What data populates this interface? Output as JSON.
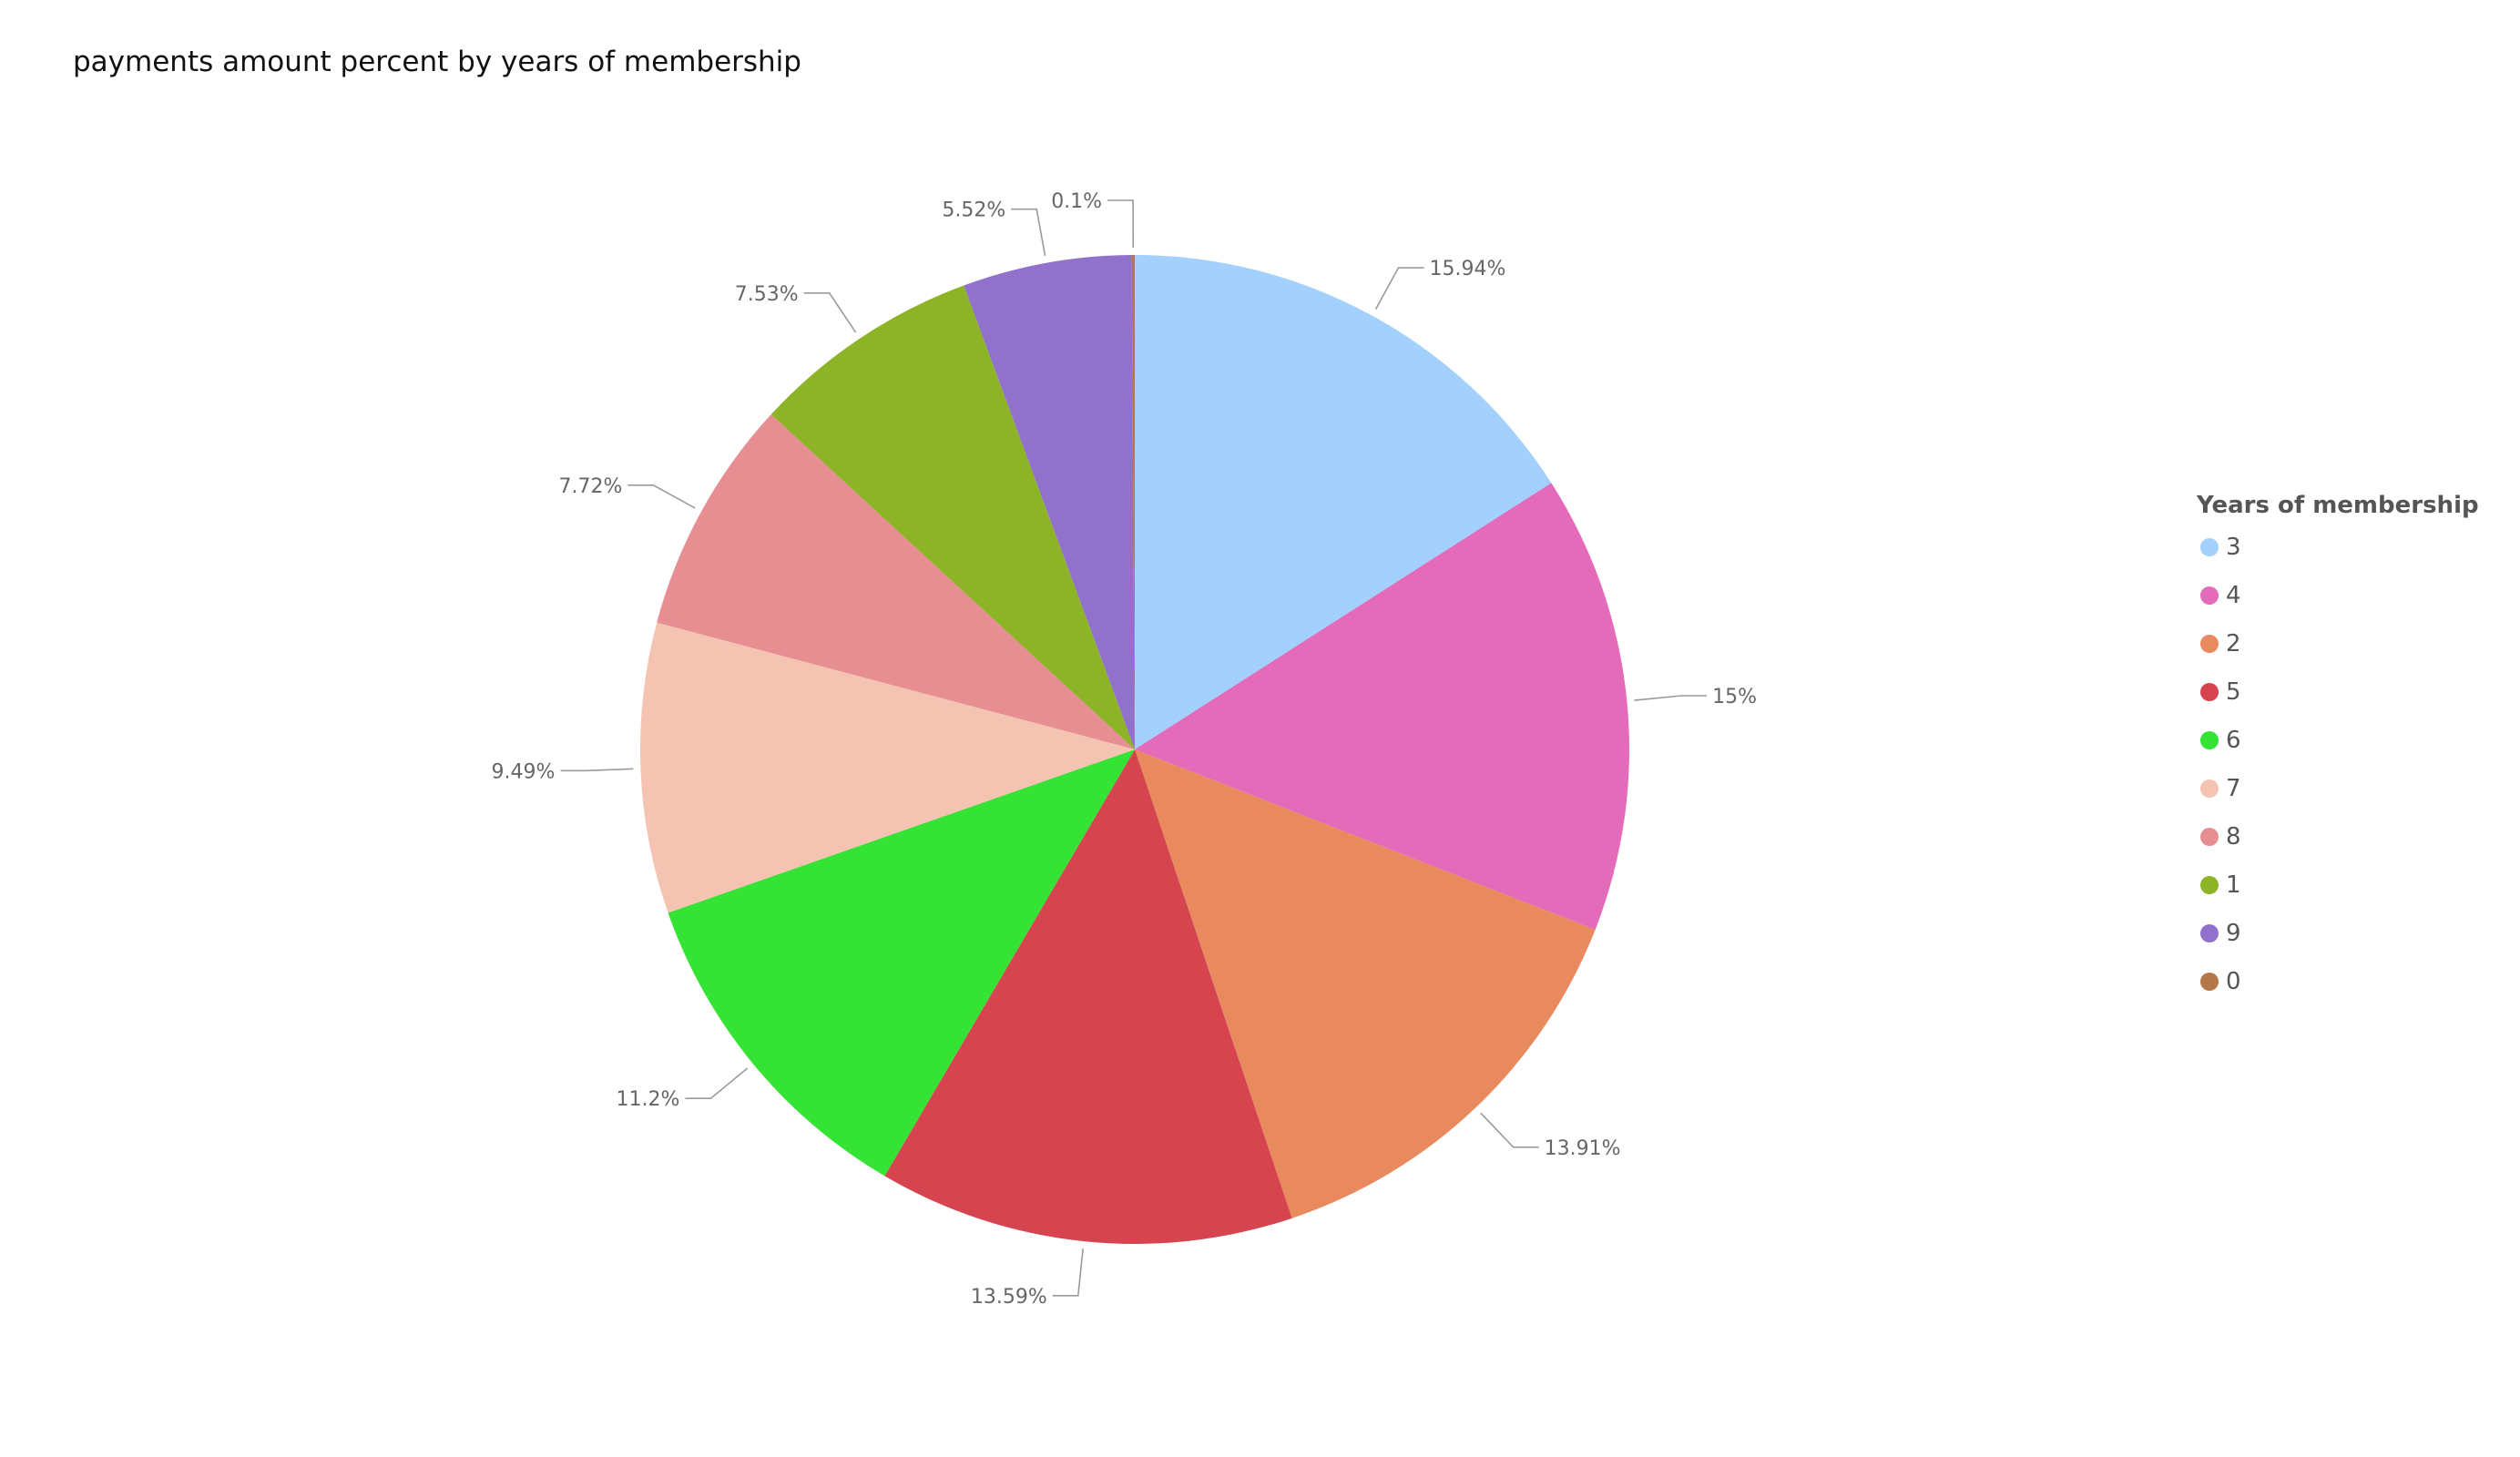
{
  "chart_data": {
    "type": "pie",
    "title": "payments amount percent by years of membership",
    "legend_title": "Years of membership",
    "legend_position": "right",
    "slices": [
      {
        "label": "3",
        "value": 15.94,
        "display": "15.94%",
        "color": "#a3d0fd"
      },
      {
        "label": "4",
        "value": 15.0,
        "display": "15%",
        "color": "#e46aba"
      },
      {
        "label": "2",
        "value": 13.91,
        "display": "13.91%",
        "color": "#e9895e"
      },
      {
        "label": "5",
        "value": 13.59,
        "display": "13.59%",
        "color": "#d5444f"
      },
      {
        "label": "6",
        "value": 11.2,
        "display": "11.2%",
        "color": "#35e335"
      },
      {
        "label": "7",
        "value": 9.49,
        "display": "9.49%",
        "color": "#f5c3b1"
      },
      {
        "label": "8",
        "value": 7.72,
        "display": "7.72%",
        "color": "#e68e92"
      },
      {
        "label": "1",
        "value": 7.53,
        "display": "7.53%",
        "color": "#8db326"
      },
      {
        "label": "9",
        "value": 5.52,
        "display": "5.52%",
        "color": "#9072cd"
      },
      {
        "label": "0",
        "value": 0.1,
        "display": "0.1%",
        "color": "#b47747"
      }
    ]
  }
}
